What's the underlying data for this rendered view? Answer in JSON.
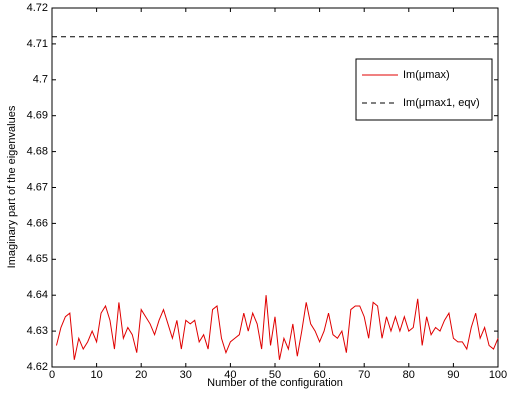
{
  "chart_data": {
    "type": "line",
    "xlabel": "Number of the configuration",
    "ylabel": "Imaginary part of the eigenvalues",
    "xlim": [
      0,
      100
    ],
    "xticks": [
      0,
      10,
      20,
      30,
      40,
      50,
      60,
      70,
      80,
      90,
      100
    ],
    "ylim": [
      4.62,
      4.72
    ],
    "yticks": [
      4.62,
      4.63,
      4.64,
      4.65,
      4.66,
      4.67,
      4.68,
      4.69,
      4.7,
      4.71,
      4.72
    ],
    "legend": "upper right",
    "series": [
      {
        "name": "Im(μmax)",
        "color": "#e00000",
        "dash": false,
        "x": [
          1,
          2,
          3,
          4,
          5,
          6,
          7,
          8,
          9,
          10,
          11,
          12,
          13,
          14,
          15,
          16,
          17,
          18,
          19,
          20,
          21,
          22,
          23,
          24,
          25,
          26,
          27,
          28,
          29,
          30,
          31,
          32,
          33,
          34,
          35,
          36,
          37,
          38,
          39,
          40,
          41,
          42,
          43,
          44,
          45,
          46,
          47,
          48,
          49,
          50,
          51,
          52,
          53,
          54,
          55,
          56,
          57,
          58,
          59,
          60,
          61,
          62,
          63,
          64,
          65,
          66,
          67,
          68,
          69,
          70,
          71,
          72,
          73,
          74,
          75,
          76,
          77,
          78,
          79,
          80,
          81,
          82,
          83,
          84,
          85,
          86,
          87,
          88,
          89,
          90,
          91,
          92,
          93,
          94,
          95,
          96,
          97,
          98,
          99,
          100
        ],
        "values": [
          4.626,
          4.631,
          4.634,
          4.635,
          4.622,
          4.628,
          4.625,
          4.627,
          4.63,
          4.627,
          4.635,
          4.637,
          4.633,
          4.625,
          4.638,
          4.628,
          4.631,
          4.629,
          4.624,
          4.636,
          4.634,
          4.632,
          4.629,
          4.633,
          4.636,
          4.632,
          4.628,
          4.633,
          4.625,
          4.633,
          4.632,
          4.633,
          4.627,
          4.629,
          4.625,
          4.636,
          4.637,
          4.628,
          4.624,
          4.627,
          4.628,
          4.629,
          4.635,
          4.63,
          4.635,
          4.632,
          4.625,
          4.64,
          4.626,
          4.634,
          4.622,
          4.628,
          4.625,
          4.632,
          4.623,
          4.63,
          4.638,
          4.632,
          4.63,
          4.627,
          4.63,
          4.635,
          4.629,
          4.628,
          4.63,
          4.624,
          4.636,
          4.637,
          4.637,
          4.634,
          4.628,
          4.638,
          4.637,
          4.628,
          4.634,
          4.63,
          4.634,
          4.63,
          4.634,
          4.63,
          4.631,
          4.639,
          4.626,
          4.634,
          4.629,
          4.631,
          4.63,
          4.633,
          4.635,
          4.628,
          4.627,
          4.627,
          4.625,
          4.631,
          4.635,
          4.628,
          4.631,
          4.626,
          4.625,
          4.628
        ]
      },
      {
        "name": "Im(μmax1, eqv)",
        "color": "#000000",
        "dash": true,
        "x": [
          0,
          100
        ],
        "values": [
          4.712,
          4.712
        ]
      }
    ]
  }
}
